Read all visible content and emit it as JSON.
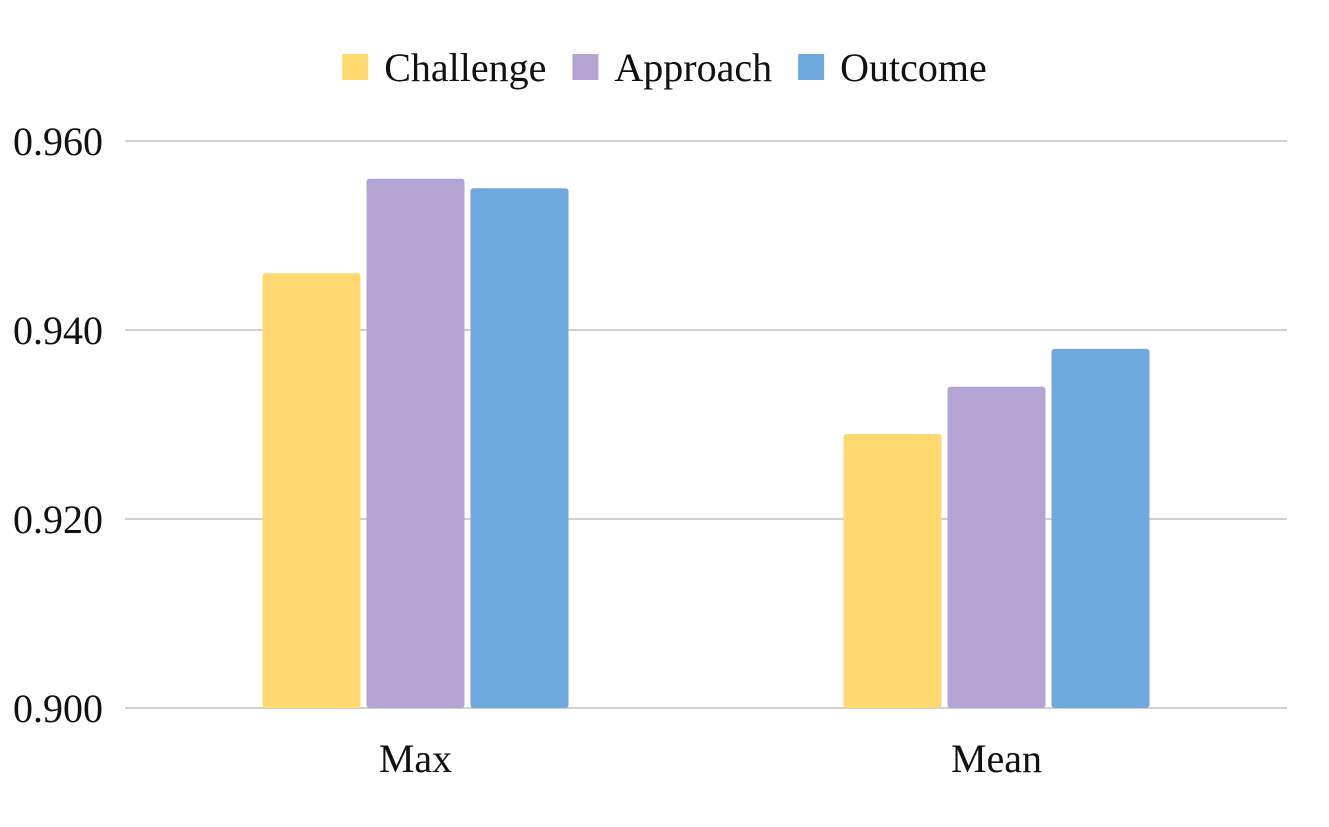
{
  "chart_data": {
    "type": "bar",
    "categories": [
      "Max",
      "Mean"
    ],
    "series": [
      {
        "name": "Challenge",
        "color": "#FFD970",
        "values": [
          0.946,
          0.929
        ]
      },
      {
        "name": "Approach",
        "color": "#B4A4D4",
        "values": [
          0.956,
          0.934
        ]
      },
      {
        "name": "Outcome",
        "color": "#6FA8DC",
        "values": [
          0.955,
          0.938
        ]
      }
    ],
    "yticks": [
      "0.900",
      "0.920",
      "0.940",
      "0.960"
    ],
    "ylim": [
      0.9,
      0.96
    ],
    "grid": true,
    "legend_position": "top-center"
  }
}
